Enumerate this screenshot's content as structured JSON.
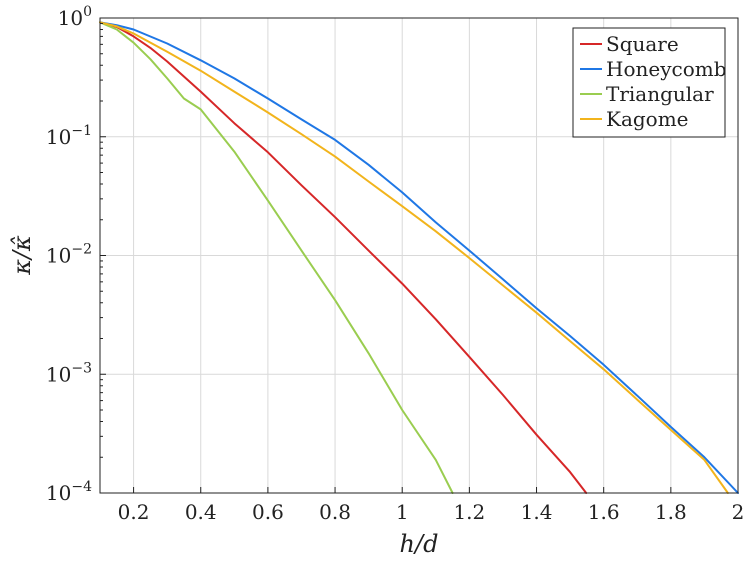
{
  "chart_data": {
    "type": "line",
    "title": "",
    "xlabel": "h/d",
    "ylabel": "κ/κ̂",
    "xlim": [
      0.1,
      2.0
    ],
    "ylim": [
      0.0001,
      1
    ],
    "yscale": "log",
    "grid": true,
    "legend_position": "top-right",
    "x_ticks": [
      0.2,
      0.4,
      0.6,
      0.8,
      1,
      1.2,
      1.4,
      1.6,
      1.8,
      2
    ],
    "x_tick_labels": [
      "0.2",
      "0.4",
      "0.6",
      "0.8",
      "1",
      "1.2",
      "1.4",
      "1.6",
      "1.8",
      "2"
    ],
    "y_ticks": [
      {
        "value": 0.0001,
        "base": "10",
        "exp": "−4"
      },
      {
        "value": 0.001,
        "base": "10",
        "exp": "−3"
      },
      {
        "value": 0.01,
        "base": "10",
        "exp": "−2"
      },
      {
        "value": 0.1,
        "base": "10",
        "exp": "−1"
      },
      {
        "value": 1,
        "base": "10",
        "exp": "0"
      }
    ],
    "series": [
      {
        "name": "Square",
        "color": "#d62728",
        "x": [
          0.1,
          0.15,
          0.2,
          0.25,
          0.3,
          0.4,
          0.5,
          0.6,
          0.7,
          0.8,
          0.9,
          1.0,
          1.1,
          1.2,
          1.3,
          1.4,
          1.5,
          1.548
        ],
        "y": [
          0.92,
          0.84,
          0.7,
          0.56,
          0.43,
          0.24,
          0.13,
          0.074,
          0.039,
          0.021,
          0.011,
          0.0058,
          0.0029,
          0.0014,
          0.00067,
          0.00031,
          0.00015,
          0.0001
        ]
      },
      {
        "name": "Honeycomb",
        "color": "#1f77e5",
        "x": [
          0.1,
          0.15,
          0.2,
          0.3,
          0.4,
          0.5,
          0.6,
          0.7,
          0.8,
          0.9,
          1.0,
          1.1,
          1.2,
          1.3,
          1.4,
          1.5,
          1.6,
          1.7,
          1.8,
          1.9,
          2.0
        ],
        "y": [
          0.92,
          0.87,
          0.8,
          0.61,
          0.44,
          0.31,
          0.21,
          0.14,
          0.094,
          0.058,
          0.034,
          0.019,
          0.011,
          0.0063,
          0.0036,
          0.0021,
          0.0012,
          0.00066,
          0.00036,
          0.0002,
          0.0001
        ]
      },
      {
        "name": "Triangular",
        "color": "#9acd50",
        "x": [
          0.1,
          0.15,
          0.2,
          0.25,
          0.3,
          0.35,
          0.4,
          0.5,
          0.6,
          0.7,
          0.8,
          0.9,
          1.0,
          1.1,
          1.15
        ],
        "y": [
          0.92,
          0.8,
          0.62,
          0.45,
          0.31,
          0.21,
          0.17,
          0.075,
          0.029,
          0.011,
          0.0042,
          0.0015,
          0.0005,
          0.00019,
          0.0001
        ]
      },
      {
        "name": "Kagome",
        "color": "#f2b41c",
        "x": [
          0.1,
          0.15,
          0.2,
          0.3,
          0.4,
          0.5,
          0.6,
          0.7,
          0.8,
          0.9,
          1.0,
          1.1,
          1.2,
          1.3,
          1.4,
          1.5,
          1.6,
          1.7,
          1.8,
          1.9,
          1.97
        ],
        "y": [
          0.92,
          0.85,
          0.74,
          0.52,
          0.36,
          0.24,
          0.16,
          0.105,
          0.068,
          0.042,
          0.026,
          0.016,
          0.0095,
          0.0056,
          0.0033,
          0.0019,
          0.0011,
          0.00061,
          0.00034,
          0.00019,
          0.0001
        ]
      }
    ]
  }
}
